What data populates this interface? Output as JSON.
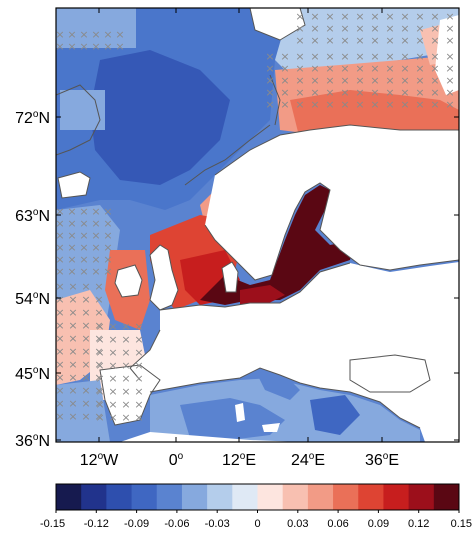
{
  "map": {
    "lat_ticks": [
      {
        "deg": "72",
        "sup": "o",
        "hemi": "N"
      },
      {
        "deg": "63",
        "sup": "o",
        "hemi": "N"
      },
      {
        "deg": "54",
        "sup": "o",
        "hemi": "N"
      },
      {
        "deg": "45",
        "sup": "o",
        "hemi": "N"
      },
      {
        "deg": "36",
        "sup": "o",
        "hemi": "N"
      }
    ],
    "lon_ticks": [
      {
        "deg": "12",
        "sup": "o",
        "hemi": "W"
      },
      {
        "deg": "0",
        "sup": "o",
        "hemi": ""
      },
      {
        "deg": "12",
        "sup": "o",
        "hemi": "E"
      },
      {
        "deg": "24",
        "sup": "o",
        "hemi": "E"
      },
      {
        "deg": "36",
        "sup": "o",
        "hemi": "E"
      }
    ],
    "stipple_marker": "×"
  },
  "colorbar": {
    "labels": [
      "-0.15",
      "-0.12",
      "-0.09",
      "-0.06",
      "-0.03",
      "0",
      "0.03",
      "0.06",
      "0.09",
      "0.12",
      "0.15"
    ],
    "colors": [
      "#161a4f",
      "#21338c",
      "#2e4fae",
      "#3f67c2",
      "#5a83d0",
      "#86a9de",
      "#b4cdeb",
      "#dfe9f5",
      "#fde5df",
      "#f8c0b1",
      "#f29b86",
      "#ea7058",
      "#de4433",
      "#c71e1e",
      "#9c0f1b",
      "#5a0713"
    ]
  },
  "colors": {
    "land": "#ffffff",
    "coast": "#555555",
    "stipple": "#8a8a8a"
  }
}
